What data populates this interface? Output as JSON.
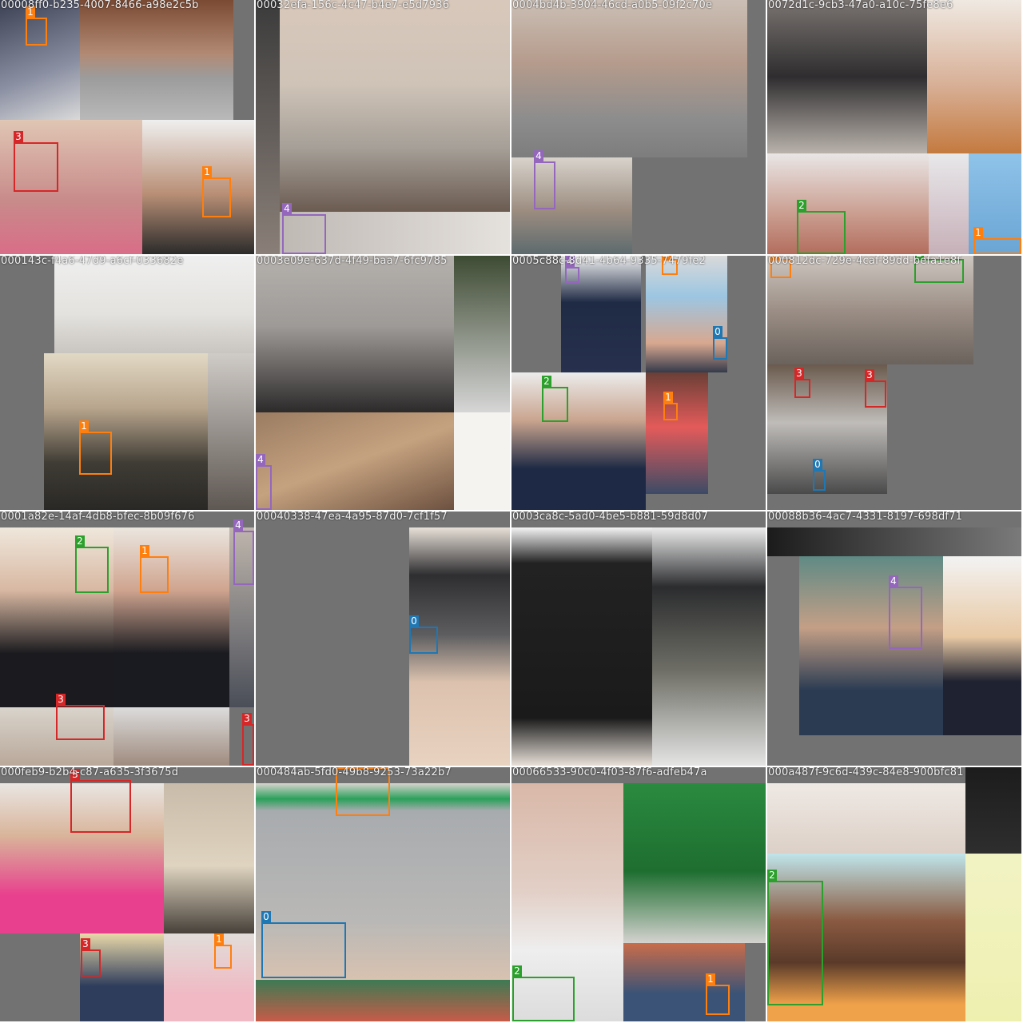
{
  "mosaic": {
    "tiles": [
      {
        "title": "00008ff0-b235-4007-8466-a98e2c5b"
      },
      {
        "title": "00032efa-156c-4c47-b4e7-e5d7936"
      },
      {
        "title": "0004bd4b-3904-46cd-a0b5-09f2c70e"
      },
      {
        "title": "0072d1c-9cb3-47a0-a10c-75fe8e6"
      },
      {
        "title": "000143c-f4a6-47d9-a6cf-033682e"
      },
      {
        "title": "0003e09e-637d-4f49-baa7-6fc9785"
      },
      {
        "title": "0005c88c-8d41-4b64-9335-7479fe2"
      },
      {
        "title": "000812dc-729e-4caf-89dd-befa1e8f"
      },
      {
        "title": "0001a82e-14af-4db8-bfec-8b09f676"
      },
      {
        "title": "00040338-47ea-4a95-87d0-7cf1f57"
      },
      {
        "title": "0003ca8c-5ad0-4be5-b881-59d8d07"
      },
      {
        "title": "00088b36-4ac7-4331-8197-698df71"
      },
      {
        "title": "000feb9-b2b4-c87-a635-3f3675d"
      },
      {
        "title": "000484ab-5fd0-49b8-9253-73a22b7"
      },
      {
        "title": "00066533-90c0-4f03-87f6-adfeb47a"
      },
      {
        "title": "000a487f-9c6d-439c-84e8-900bfc81"
      }
    ],
    "class_colors": {
      "0": "#1f77b4",
      "1": "#ff7f0e",
      "2": "#2ca02c",
      "3": "#d62728",
      "4": "#9467bd"
    },
    "annotations": [
      {
        "tile": 0,
        "label": "1"
      },
      {
        "tile": 0,
        "label": "3"
      },
      {
        "tile": 0,
        "label": "1"
      },
      {
        "tile": 1,
        "label": "4"
      },
      {
        "tile": 2,
        "label": "4"
      },
      {
        "tile": 2,
        "label": "1"
      },
      {
        "tile": 3,
        "label": "2"
      },
      {
        "tile": 3,
        "label": "1"
      },
      {
        "tile": 3,
        "label": "1"
      },
      {
        "tile": 4,
        "label": "1"
      },
      {
        "tile": 5,
        "label": "4"
      },
      {
        "tile": 6,
        "label": "4"
      },
      {
        "tile": 6,
        "label": "1"
      },
      {
        "tile": 6,
        "label": "0"
      },
      {
        "tile": 6,
        "label": "2"
      },
      {
        "tile": 6,
        "label": "1"
      },
      {
        "tile": 7,
        "label": "1"
      },
      {
        "tile": 7,
        "label": "2"
      },
      {
        "tile": 7,
        "label": "3"
      },
      {
        "tile": 7,
        "label": "3"
      },
      {
        "tile": 7,
        "label": "0"
      },
      {
        "tile": 8,
        "label": "2"
      },
      {
        "tile": 8,
        "label": "1"
      },
      {
        "tile": 8,
        "label": "4"
      },
      {
        "tile": 8,
        "label": "3"
      },
      {
        "tile": 8,
        "label": "3"
      },
      {
        "tile": 9,
        "label": "0"
      },
      {
        "tile": 11,
        "label": "4"
      },
      {
        "tile": 12,
        "label": "3"
      },
      {
        "tile": 12,
        "label": "3"
      },
      {
        "tile": 12,
        "label": "1"
      },
      {
        "tile": 13,
        "label": "1"
      },
      {
        "tile": 13,
        "label": "0"
      },
      {
        "tile": 14,
        "label": "2"
      },
      {
        "tile": 14,
        "label": "1"
      },
      {
        "tile": 15,
        "label": "2"
      }
    ]
  }
}
